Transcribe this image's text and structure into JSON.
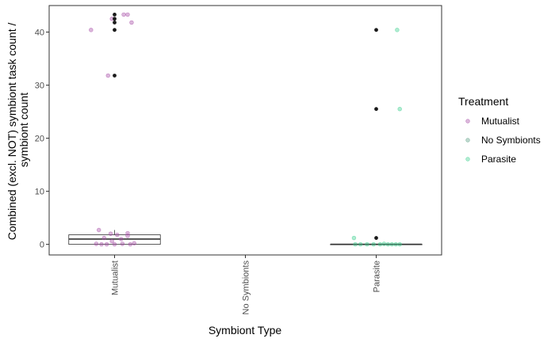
{
  "chart_data": {
    "type": "box-jitter",
    "xlabel": "Symbiont Type",
    "ylabel": "Combined (excl. NOT) symbiont task count / symbiont count",
    "categories": [
      "Mutualist",
      "No Symbionts",
      "Parasite"
    ],
    "ylim": [
      -2,
      45
    ],
    "yticks": [
      0,
      10,
      20,
      30,
      40
    ],
    "grid": false,
    "legend": {
      "title": "Treatment",
      "position": "right",
      "entries": [
        "Mutualist",
        "No Symbionts",
        "Parasite"
      ]
    },
    "colors": {
      "Mutualist": "#a64ca6",
      "No Symbionts": "#5a9e84",
      "Parasite": "#3ccf8e",
      "outlier": "#1a1a1a"
    },
    "boxes": [
      {
        "category": "Mutualist",
        "q1": 0.0,
        "median": 1.0,
        "q3": 1.8,
        "whisker_low": 0.0,
        "whisker_high": 2.7
      },
      {
        "category": "Parasite",
        "q1": 0.0,
        "median": 0.0,
        "q3": 0.0,
        "whisker_low": 0.0,
        "whisker_high": 0.0
      }
    ],
    "outliers": [
      {
        "category": "Mutualist",
        "y": 43.3
      },
      {
        "category": "Mutualist",
        "y": 42.5
      },
      {
        "category": "Mutualist",
        "y": 41.8
      },
      {
        "category": "Mutualist",
        "y": 40.4
      },
      {
        "category": "Mutualist",
        "y": 31.8
      },
      {
        "category": "Parasite",
        "y": 40.4
      },
      {
        "category": "Parasite",
        "y": 25.5
      },
      {
        "category": "Parasite",
        "y": 1.2
      }
    ],
    "series": [
      {
        "name": "Mutualist",
        "points": [
          {
            "x": "Mutualist",
            "dx": -0.18,
            "y": 40.4
          },
          {
            "x": "Mutualist",
            "dx": -0.02,
            "y": 42.5
          },
          {
            "x": "Mutualist",
            "dx": 0.07,
            "y": 43.3
          },
          {
            "x": "Mutualist",
            "dx": 0.13,
            "y": 41.8
          },
          {
            "x": "Mutualist",
            "dx": 0.1,
            "y": 43.3
          },
          {
            "x": "Mutualist",
            "dx": -0.05,
            "y": 31.8
          },
          {
            "x": "Mutualist",
            "dx": -0.12,
            "y": 2.7
          },
          {
            "x": "Mutualist",
            "dx": -0.03,
            "y": 2.0
          },
          {
            "x": "Mutualist",
            "dx": 0.02,
            "y": 1.8
          },
          {
            "x": "Mutualist",
            "dx": 0.1,
            "y": 2.1
          },
          {
            "x": "Mutualist",
            "dx": 0.1,
            "y": 1.6
          },
          {
            "x": "Mutualist",
            "dx": -0.08,
            "y": 1.2
          },
          {
            "x": "Mutualist",
            "dx": 0.05,
            "y": 1.0
          },
          {
            "x": "Mutualist",
            "dx": -0.14,
            "y": 0.1
          },
          {
            "x": "Mutualist",
            "dx": -0.1,
            "y": 0.0
          },
          {
            "x": "Mutualist",
            "dx": -0.06,
            "y": 0.0
          },
          {
            "x": "Mutualist",
            "dx": 0.0,
            "y": 0.0
          },
          {
            "x": "Mutualist",
            "dx": 0.06,
            "y": 0.1
          },
          {
            "x": "Mutualist",
            "dx": 0.12,
            "y": 0.0
          },
          {
            "x": "Mutualist",
            "dx": 0.15,
            "y": 0.2
          },
          {
            "x": "Mutualist",
            "dx": -0.02,
            "y": 0.6
          }
        ]
      },
      {
        "name": "Parasite",
        "points": [
          {
            "x": "Parasite",
            "dx": 0.16,
            "y": 40.4
          },
          {
            "x": "Parasite",
            "dx": 0.18,
            "y": 25.5
          },
          {
            "x": "Parasite",
            "dx": -0.17,
            "y": 1.2
          },
          {
            "x": "Parasite",
            "dx": -0.16,
            "y": 0.0
          },
          {
            "x": "Parasite",
            "dx": -0.12,
            "y": 0.0
          },
          {
            "x": "Parasite",
            "dx": -0.07,
            "y": 0.0
          },
          {
            "x": "Parasite",
            "dx": -0.02,
            "y": 0.0
          },
          {
            "x": "Parasite",
            "dx": 0.03,
            "y": 0.0
          },
          {
            "x": "Parasite",
            "dx": 0.06,
            "y": 0.1
          },
          {
            "x": "Parasite",
            "dx": 0.09,
            "y": 0.0
          },
          {
            "x": "Parasite",
            "dx": 0.12,
            "y": 0.0
          },
          {
            "x": "Parasite",
            "dx": 0.15,
            "y": 0.0
          },
          {
            "x": "Parasite",
            "dx": 0.18,
            "y": 0.0
          }
        ]
      }
    ]
  }
}
